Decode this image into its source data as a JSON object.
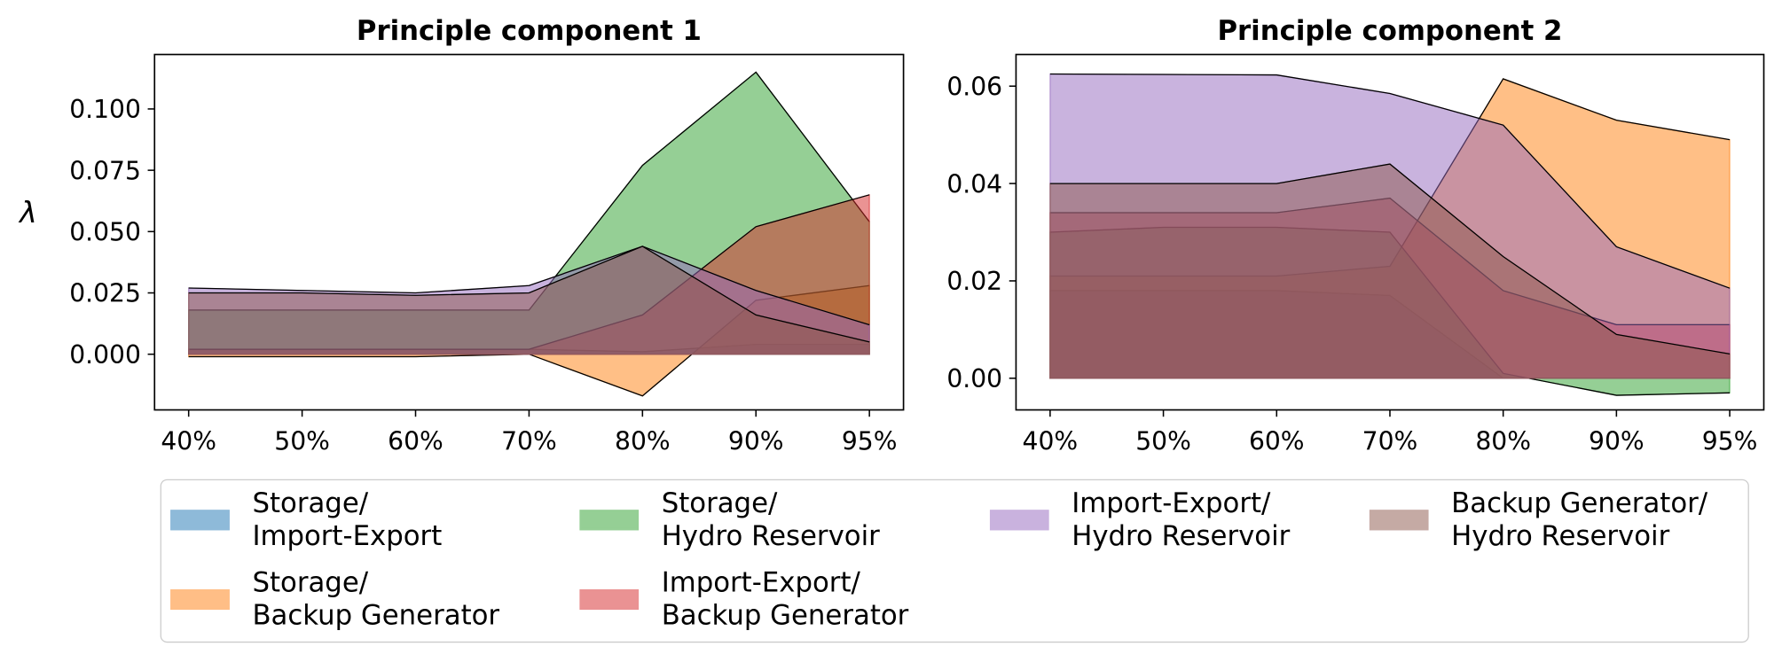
{
  "chart_data": [
    {
      "type": "area",
      "title": "Principle component 1",
      "ylabel": "λ",
      "categories": [
        "40%",
        "50%",
        "60%",
        "70%",
        "80%",
        "90%",
        "95%"
      ],
      "ylim": [
        -0.0227,
        0.1222
      ],
      "yticks": [
        {
          "value": 0,
          "label": "0.000"
        },
        0.025,
        {
          "value": 0.05,
          "label": "0.050"
        },
        0.075,
        {
          "value": 0.1,
          "label": "0.100"
        }
      ],
      "series": [
        {
          "name": "Storage/\nImport-Export",
          "color": "#1f77b4",
          "values": [
            0.002,
            0.002,
            0.002,
            0.002,
            0.001,
            0.004,
            0.004
          ]
        },
        {
          "name": "Storage/\nBackup Generator",
          "color": "#ff7f0e",
          "values": [
            -0.001,
            -0.001,
            -0.001,
            0.0,
            -0.017,
            0.022,
            0.028
          ]
        },
        {
          "name": "Storage/\nHydro Reservoir",
          "color": "#2ca02c",
          "values": [
            0.018,
            0.018,
            0.018,
            0.018,
            0.077,
            0.115,
            0.054
          ]
        },
        {
          "name": "Import-Export/\nBackup Generator",
          "color": "#d62728",
          "values": [
            0.002,
            0.002,
            0.002,
            0.002,
            0.016,
            0.052,
            0.065
          ]
        },
        {
          "name": "Import-Export/\nHydro Reservoir",
          "color": "#9467bd",
          "values": [
            0.027,
            0.026,
            0.025,
            0.028,
            0.044,
            0.026,
            0.012
          ]
        },
        {
          "name": "Backup Generator/\nHydro Reservoir",
          "color": "#8c564b",
          "values": [
            0.025,
            0.025,
            0.024,
            0.025,
            0.044,
            0.016,
            0.005
          ]
        }
      ]
    },
    {
      "type": "area",
      "title": "Principle component 2",
      "categories": [
        "40%",
        "50%",
        "60%",
        "70%",
        "80%",
        "90%",
        "95%"
      ],
      "ylim": [
        -0.0065,
        0.0665
      ],
      "yticks": [
        {
          "value": 0,
          "label": "0.00"
        },
        0.02,
        0.04,
        0.06
      ],
      "series": [
        {
          "color": "#1f77b4",
          "values": [
            0.018,
            0.018,
            0.018,
            0.017,
            0.0,
            0.0,
            0.0
          ]
        },
        {
          "color": "#ff7f0e",
          "values": [
            0.021,
            0.021,
            0.021,
            0.023,
            0.0615,
            0.053,
            0.049
          ]
        },
        {
          "color": "#2ca02c",
          "values": [
            0.03,
            0.031,
            0.031,
            0.03,
            0.001,
            -0.0035,
            -0.003
          ]
        },
        {
          "color": "#d62728",
          "values": [
            0.034,
            0.034,
            0.034,
            0.037,
            0.018,
            0.011,
            0.011
          ]
        },
        {
          "color": "#9467bd",
          "values": [
            0.0625,
            0.0624,
            0.0623,
            0.0585,
            0.052,
            0.027,
            0.0185
          ]
        },
        {
          "color": "#8c564b",
          "values": [
            0.04,
            0.04,
            0.04,
            0.044,
            0.025,
            0.009,
            0.005
          ]
        }
      ]
    }
  ]
}
